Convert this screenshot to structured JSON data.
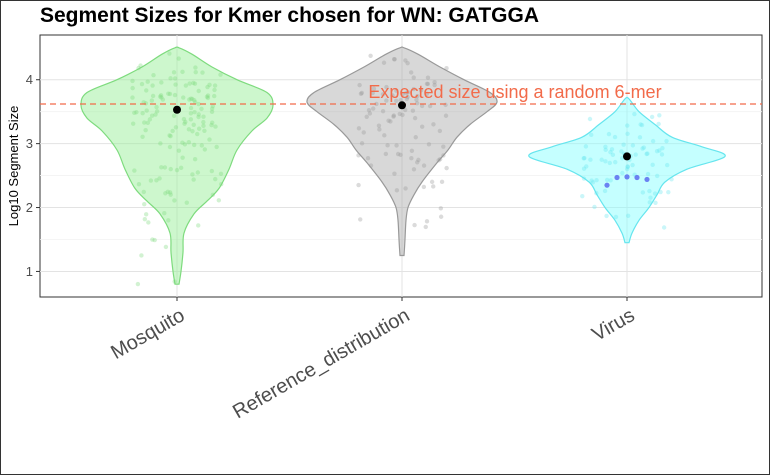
{
  "chart_data": {
    "type": "violin",
    "title": "Segment Sizes for Kmer chosen for WN: GATGGA",
    "xlabel": "",
    "ylabel": "Log10 Segment Size",
    "categories": [
      "Mosquito",
      "Reference_distribution",
      "Virus"
    ],
    "ylim": [
      0.6,
      4.7
    ],
    "yticks": [
      1,
      2,
      3,
      4
    ],
    "grid": true,
    "violin_range": [
      [
        0.8,
        4.5
      ],
      [
        1.25,
        4.5
      ],
      [
        1.45,
        3.7
      ]
    ],
    "violin_colors": [
      "#90ee90",
      "#a9a9a9",
      "#7fffff"
    ],
    "violin_edge_colors": [
      "#7edb7e",
      "#999999",
      "#66e5ee"
    ],
    "violin_profile": [
      [
        [
          0.8,
          0.02
        ],
        [
          1.0,
          0.04
        ],
        [
          1.3,
          0.06
        ],
        [
          1.6,
          0.07
        ],
        [
          1.9,
          0.17
        ],
        [
          2.1,
          0.3
        ],
        [
          2.3,
          0.42
        ],
        [
          2.6,
          0.52
        ],
        [
          2.9,
          0.6
        ],
        [
          3.2,
          0.75
        ],
        [
          3.4,
          0.9
        ],
        [
          3.6,
          0.96
        ],
        [
          3.8,
          0.9
        ],
        [
          4.0,
          0.6
        ],
        [
          4.2,
          0.35
        ],
        [
          4.4,
          0.15
        ],
        [
          4.5,
          0.02
        ]
      ],
      [
        [
          1.25,
          0.02
        ],
        [
          1.5,
          0.03
        ],
        [
          1.8,
          0.04
        ],
        [
          2.0,
          0.06
        ],
        [
          2.2,
          0.12
        ],
        [
          2.4,
          0.2
        ],
        [
          2.7,
          0.35
        ],
        [
          2.9,
          0.46
        ],
        [
          3.1,
          0.55
        ],
        [
          3.3,
          0.68
        ],
        [
          3.5,
          0.85
        ],
        [
          3.65,
          0.95
        ],
        [
          3.8,
          0.88
        ],
        [
          4.0,
          0.62
        ],
        [
          4.2,
          0.38
        ],
        [
          4.4,
          0.16
        ],
        [
          4.5,
          0.02
        ]
      ],
      [
        [
          1.45,
          0.02
        ],
        [
          1.6,
          0.05
        ],
        [
          1.8,
          0.12
        ],
        [
          2.0,
          0.22
        ],
        [
          2.2,
          0.3
        ],
        [
          2.4,
          0.38
        ],
        [
          2.6,
          0.6
        ],
        [
          2.8,
          0.98
        ],
        [
          2.95,
          0.75
        ],
        [
          3.1,
          0.45
        ],
        [
          3.3,
          0.28
        ],
        [
          3.5,
          0.12
        ],
        [
          3.7,
          0.02
        ]
      ]
    ],
    "means": [
      3.53,
      3.6,
      2.8
    ],
    "highlight_points": {
      "category": "Virus",
      "color": "#5b6cf0",
      "values": [
        [
          -0.1,
          2.35
        ],
        [
          -0.05,
          2.47
        ],
        [
          0.0,
          2.48
        ],
        [
          0.05,
          2.47
        ],
        [
          0.1,
          2.44
        ]
      ]
    },
    "reference_line": {
      "y": 3.62,
      "color": "#f26b4a",
      "label": "Expected size using a random 6-mer"
    }
  }
}
